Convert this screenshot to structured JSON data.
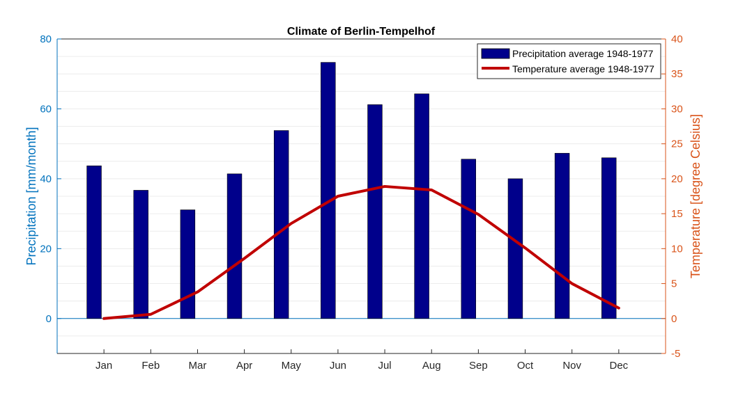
{
  "chart_data": {
    "type": "bar+line",
    "title": "Climate of Berlin-Tempelhof",
    "categories": [
      "Jan",
      "Feb",
      "Mar",
      "Apr",
      "May",
      "Jun",
      "Jul",
      "Aug",
      "Sep",
      "Oct",
      "Nov",
      "Dec"
    ],
    "left_axis": {
      "label": "Precipitation [mm/month]",
      "range": [
        -10,
        80
      ],
      "ticks": [
        "0",
        "20",
        "40",
        "60",
        "80"
      ],
      "tick_values": [
        0,
        20,
        40,
        60,
        80
      ],
      "color": "#0072bd"
    },
    "right_axis": {
      "label": "Temperature [degree Celsius]",
      "range": [
        -5,
        40
      ],
      "ticks": [
        "-5",
        "0",
        "5",
        "10",
        "15",
        "20",
        "25",
        "30",
        "35",
        "40"
      ],
      "tick_values": [
        -5,
        0,
        5,
        10,
        15,
        20,
        25,
        30,
        35,
        40
      ],
      "color": "#d95319"
    },
    "series": [
      {
        "name": "Precipitation average 1948-1977",
        "type": "bar",
        "axis": "left",
        "color": "#00008b",
        "values": [
          43.7,
          36.7,
          31.1,
          41.4,
          53.8,
          73.3,
          61.2,
          64.3,
          45.6,
          40.0,
          47.3,
          46.0
        ]
      },
      {
        "name": "Temperature average 1948-1977",
        "type": "line",
        "axis": "right",
        "color": "#c00000",
        "values": [
          0.0,
          0.6,
          3.8,
          8.6,
          13.6,
          17.5,
          18.9,
          18.4,
          14.9,
          10.1,
          5.0,
          1.5
        ]
      }
    ],
    "grid": "horizontal minor",
    "zero_line": true,
    "legend_position": "top-right"
  }
}
